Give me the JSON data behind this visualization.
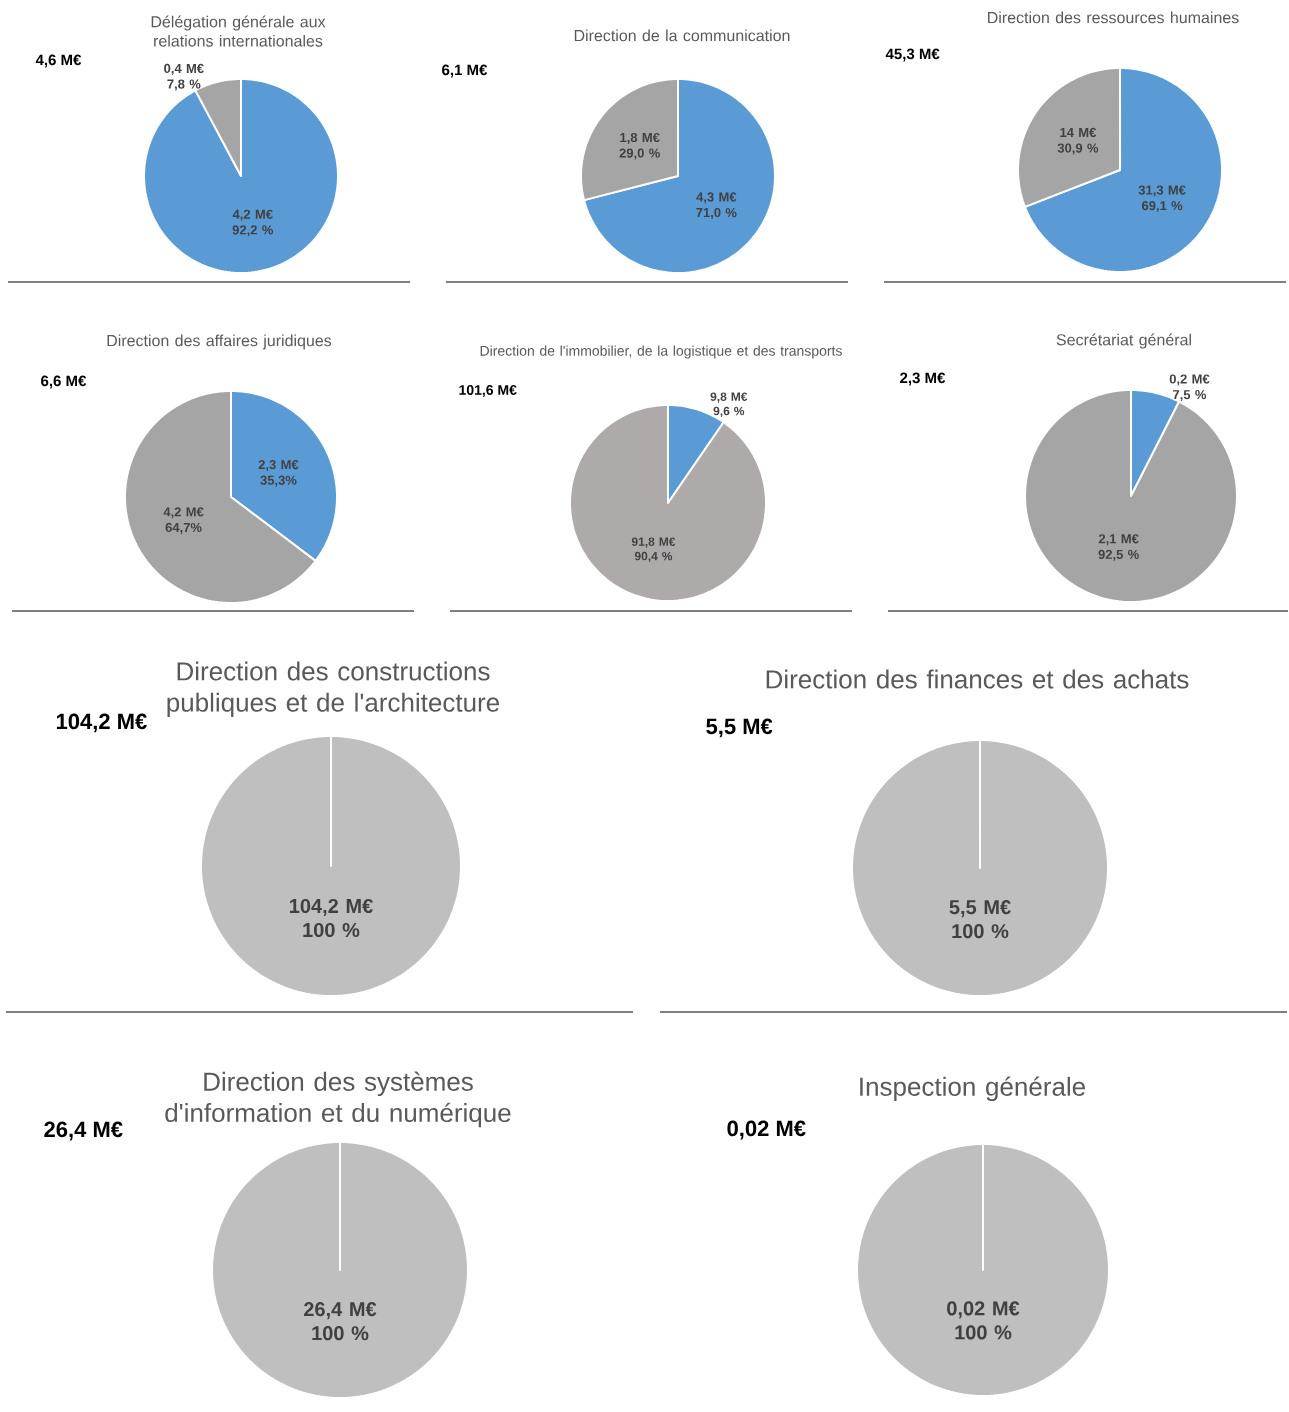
{
  "chart_data": [
    {
      "type": "pie",
      "title": "Délégation générale aux relations internationales",
      "subtitle": "4,6 M€",
      "categories": [
        null,
        null
      ],
      "values": [
        92.2,
        7.8
      ],
      "colors": [
        "#5b9bd5",
        "#a5a5a5"
      ],
      "value_labels": [
        "4,2 M€ 92,2 %",
        "0,4 M€ 7,8 %"
      ]
    },
    {
      "type": "pie",
      "title": "Direction de la communication",
      "subtitle": "6,1 M€",
      "categories": [
        null,
        null
      ],
      "values": [
        71.0,
        29.0
      ],
      "colors": [
        "#5b9bd5",
        "#a5a5a5"
      ],
      "value_labels": [
        "4,3 M€ 71,0 %",
        "1,8 M€ 29,0 %"
      ]
    },
    {
      "type": "pie",
      "title": "Direction des ressources humaines",
      "subtitle": "45,3 M€",
      "categories": [
        null,
        null
      ],
      "values": [
        69.1,
        30.9
      ],
      "colors": [
        "#5b9bd5",
        "#a5a5a5"
      ],
      "value_labels": [
        "31,3 M€ 69,1 %",
        "14 M€ 30,9 %"
      ]
    },
    {
      "type": "pie",
      "title": "Direction des affaires juridiques",
      "subtitle": "6,6 M€",
      "categories": [
        null,
        null
      ],
      "values": [
        35.3,
        64.7
      ],
      "colors": [
        "#5b9bd5",
        "#a5a5a5"
      ],
      "value_labels": [
        "2,3 M€ 35,3%",
        "4,2 M€ 64,7%"
      ]
    },
    {
      "type": "pie",
      "title": "Direction de l'immobilier, de la logistique et des transports",
      "subtitle": "101,6 M€",
      "categories": [
        null,
        null
      ],
      "values": [
        9.6,
        90.4
      ],
      "colors": [
        "#5b9bd5",
        "#aeaaaa"
      ],
      "value_labels": [
        "9,8 M€ 9,6 %",
        "91,8 M€ 90,4 %"
      ]
    },
    {
      "type": "pie",
      "title": "Secrétariat général",
      "subtitle": "2,3 M€",
      "categories": [
        null,
        null
      ],
      "values": [
        7.5,
        92.5
      ],
      "colors": [
        "#5b9bd5",
        "#a5a5a5"
      ],
      "value_labels": [
        "0,2 M€ 7,5 %",
        "2,1 M€ 92,5 %"
      ]
    },
    {
      "type": "pie",
      "title": "Direction des constructions publiques et de l'architecture",
      "subtitle": "104,2 M€",
      "categories": [
        null
      ],
      "values": [
        100
      ],
      "colors": [
        "#bfbfbf"
      ],
      "value_labels": [
        "104,2 M€ 100 %"
      ]
    },
    {
      "type": "pie",
      "title": "Direction des finances et des achats",
      "subtitle": "5,5 M€",
      "categories": [
        null
      ],
      "values": [
        100
      ],
      "colors": [
        "#bfbfbf"
      ],
      "value_labels": [
        "5,5 M€ 100 %"
      ]
    },
    {
      "type": "pie",
      "title": "Direction des systèmes d'information et du numérique",
      "subtitle": "26,4 M€",
      "categories": [
        null
      ],
      "values": [
        100
      ],
      "colors": [
        "#bfbfbf"
      ],
      "value_labels": [
        "26,4 M€ 100 %"
      ]
    },
    {
      "type": "pie",
      "title": "Inspection générale",
      "subtitle": "0,02 M€",
      "categories": [
        null
      ],
      "values": [
        100
      ],
      "colors": [
        "#bfbfbf"
      ],
      "value_labels": [
        "0,02 M€ 100 %"
      ]
    }
  ]
}
